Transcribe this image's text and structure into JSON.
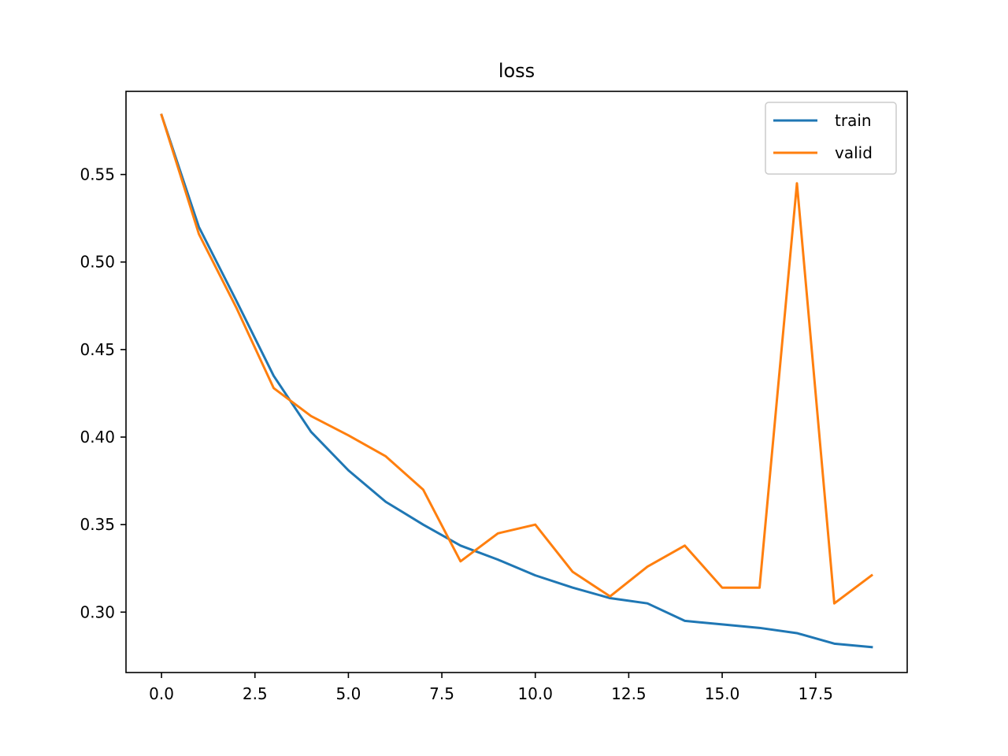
{
  "chart_data": {
    "type": "line",
    "title": "loss",
    "xlabel": "",
    "ylabel": "",
    "xlim": [
      -0.95,
      19.95
    ],
    "ylim": [
      0.2655,
      0.5975
    ],
    "x_ticks": [
      0.0,
      2.5,
      5.0,
      7.5,
      10.0,
      12.5,
      15.0,
      17.5
    ],
    "x_tick_labels": [
      "0.0",
      "2.5",
      "5.0",
      "7.5",
      "10.0",
      "12.5",
      "15.0",
      "17.5"
    ],
    "y_ticks": [
      0.3,
      0.35,
      0.4,
      0.45,
      0.5,
      0.55
    ],
    "y_tick_labels": [
      "0.30",
      "0.35",
      "0.40",
      "0.45",
      "0.50",
      "0.55"
    ],
    "grid": false,
    "legend_position": "top-right",
    "x": [
      0,
      1,
      2,
      3,
      4,
      5,
      6,
      7,
      8,
      9,
      10,
      11,
      12,
      13,
      14,
      15,
      16,
      17,
      18,
      19
    ],
    "series": [
      {
        "name": "train",
        "color": "#1f77b4",
        "values": [
          0.584,
          0.52,
          0.478,
          0.435,
          0.403,
          0.381,
          0.363,
          0.35,
          0.338,
          0.33,
          0.321,
          0.314,
          0.308,
          0.305,
          0.295,
          0.293,
          0.291,
          0.288,
          0.282,
          0.28
        ]
      },
      {
        "name": "valid",
        "color": "#ff7f0e",
        "values": [
          0.584,
          0.516,
          0.474,
          0.428,
          0.412,
          0.401,
          0.389,
          0.37,
          0.329,
          0.345,
          0.35,
          0.323,
          0.309,
          0.326,
          0.338,
          0.314,
          0.314,
          0.545,
          0.305,
          0.321
        ]
      }
    ]
  }
}
